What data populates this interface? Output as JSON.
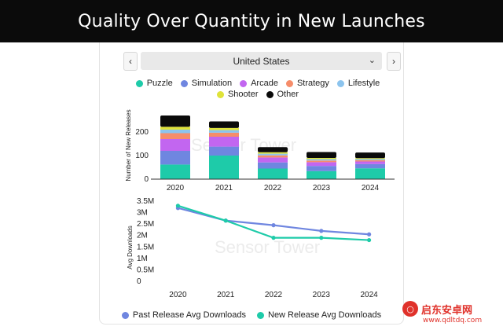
{
  "banner": {
    "title": "Quality Over Quantity in New Launches"
  },
  "selector": {
    "value": "United States",
    "prev_icon": "chevron-left-icon",
    "next_icon": "chevron-right-icon"
  },
  "watermark": {
    "text": "Sensor Tower"
  },
  "site_badge": {
    "name": "启东安卓网",
    "url": "www.qdltdq.com"
  },
  "chart_data": [
    {
      "type": "bar",
      "stacked": true,
      "ylabel": "Number of New Releases",
      "categories": [
        "2020",
        "2021",
        "2022",
        "2023",
        "2024"
      ],
      "ylim": [
        0,
        300
      ],
      "yticks": [
        "0",
        "100",
        "200"
      ],
      "legend_position": "top-center",
      "series": [
        {
          "name": "Puzzle",
          "color": "#1ecba9",
          "values": [
            62,
            100,
            45,
            34,
            46
          ]
        },
        {
          "name": "Simulation",
          "color": "#6f86e0",
          "values": [
            58,
            38,
            26,
            22,
            18
          ]
        },
        {
          "name": "Arcade",
          "color": "#c266f0",
          "values": [
            50,
            42,
            21,
            16,
            11
          ]
        },
        {
          "name": "Strategy",
          "color": "#f68d6a",
          "values": [
            25,
            17,
            9,
            7,
            5
          ]
        },
        {
          "name": "Lifestyle",
          "color": "#8cc4ee",
          "values": [
            15,
            11,
            7,
            6,
            5
          ]
        },
        {
          "name": "Shooter",
          "color": "#dfe33a",
          "values": [
            12,
            9,
            6,
            5,
            4
          ]
        },
        {
          "name": "Other",
          "color": "#0a0a0a",
          "values": [
            48,
            28,
            22,
            25,
            24
          ]
        }
      ]
    },
    {
      "type": "line",
      "ylabel": "Avg Downloads",
      "categories": [
        "2020",
        "2021",
        "2022",
        "2023",
        "2024"
      ],
      "ylim": [
        0,
        3.5
      ],
      "yticks": [
        "0",
        "0.5M",
        "1M",
        "1.5M",
        "2M",
        "2.5M",
        "3M",
        "3.5M"
      ],
      "legend_position": "bottom-center",
      "series": [
        {
          "name": "Past Release Avg Downloads",
          "color": "#6f86e0",
          "values": [
            3.2,
            2.65,
            2.45,
            2.2,
            2.05
          ]
        },
        {
          "name": "New Release Avg Downloads",
          "color": "#1ecba9",
          "values": [
            3.3,
            2.65,
            1.9,
            1.9,
            1.8
          ]
        }
      ]
    }
  ]
}
